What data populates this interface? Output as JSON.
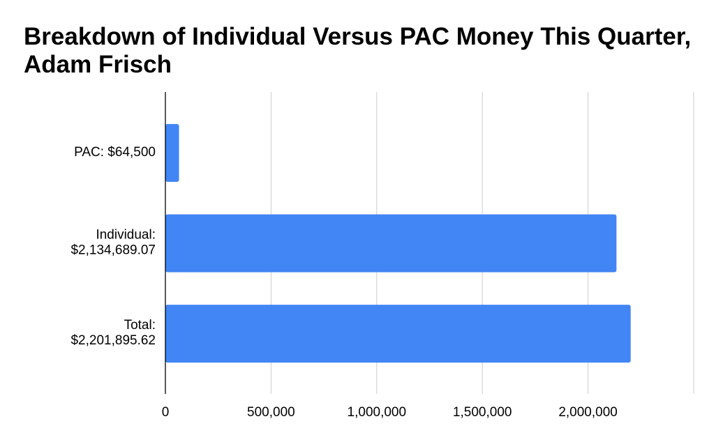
{
  "chart_data": {
    "type": "bar",
    "orientation": "horizontal",
    "title": "Breakdown of Individual Versus PAC Money This Quarter, Adam Frisch",
    "categories": [
      "PAC: $64,500",
      "Individual: $2,134,689.07",
      "Total: $2,201,895.62"
    ],
    "values": [
      64500,
      2134689.07,
      2201895.62
    ],
    "color": "#4285f4",
    "xlim": [
      0,
      2500000
    ],
    "xticks": [
      0,
      {
        "value": 500000,
        "label": "500,000"
      },
      {
        "value": 1000000,
        "label": "1,000,000"
      },
      {
        "value": 1500000,
        "label": "1,500,000"
      },
      {
        "value": 2000000,
        "label": "2,000,000"
      }
    ],
    "grid": true
  }
}
